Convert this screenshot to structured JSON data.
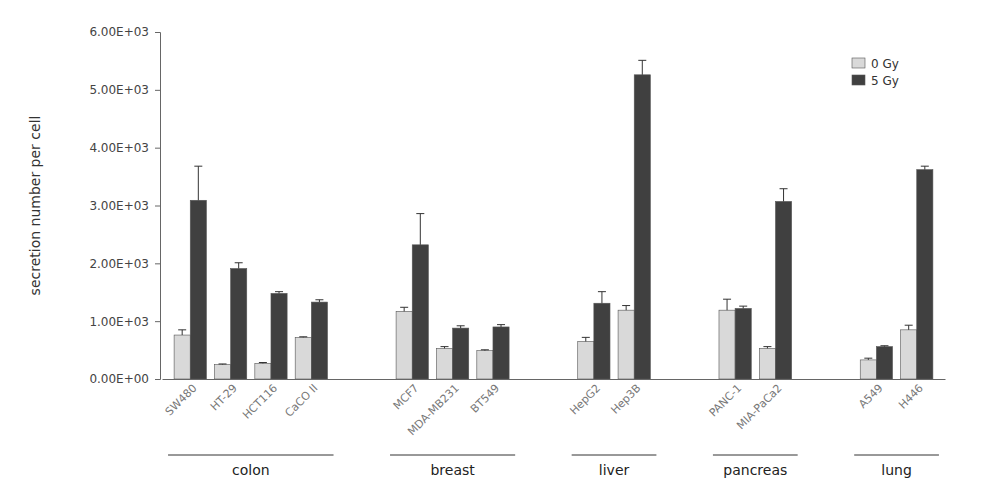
{
  "chart_data": {
    "type": "bar",
    "y_label": "secretion number per cell",
    "categories": [
      "SW480",
      "HT-29",
      "HCT116",
      "CaCO II",
      "MCF7",
      "MDA-MB231",
      "BT549",
      "HepG2",
      "Hep3B",
      "PANC-1",
      "MIA-PaCa2",
      "A549",
      "H446"
    ],
    "groups": [
      {
        "name": "colon",
        "size": 4
      },
      {
        "name": "breast",
        "size": 3
      },
      {
        "name": "liver",
        "size": 2
      },
      {
        "name": "pancreas",
        "size": 2
      },
      {
        "name": "lung",
        "size": 2
      }
    ],
    "series": [
      {
        "name": "0 Gy",
        "color": "#d9d9d9",
        "values": [
          760,
          250,
          270,
          720,
          1170,
          530,
          490,
          650,
          1190,
          1190,
          530,
          330,
          850
        ],
        "errors": [
          90,
          10,
          15,
          10,
          70,
          30,
          15,
          70,
          80,
          190,
          30,
          30,
          80
        ]
      },
      {
        "name": "5 Gy",
        "color": "#404040",
        "values": [
          3090,
          1910,
          1480,
          1330,
          2320,
          880,
          900,
          1310,
          5260,
          1220,
          3070,
          560,
          3620
        ],
        "errors": [
          590,
          100,
          30,
          40,
          540,
          40,
          40,
          200,
          250,
          40,
          220,
          15,
          60
        ]
      }
    ],
    "ylim": [
      0,
      6000
    ],
    "yticks": [
      {
        "value": 0,
        "label": "0.00E+00"
      },
      {
        "value": 1000,
        "label": "1.00E+03"
      },
      {
        "value": 2000,
        "label": "2.00E+03"
      },
      {
        "value": 3000,
        "label": "3.00E+03"
      },
      {
        "value": 4000,
        "label": "4.00E+03"
      },
      {
        "value": 5000,
        "label": "5.00E+03"
      },
      {
        "value": 6000,
        "label": "6.00E+03"
      }
    ],
    "legend": "top-right",
    "grid": false
  }
}
